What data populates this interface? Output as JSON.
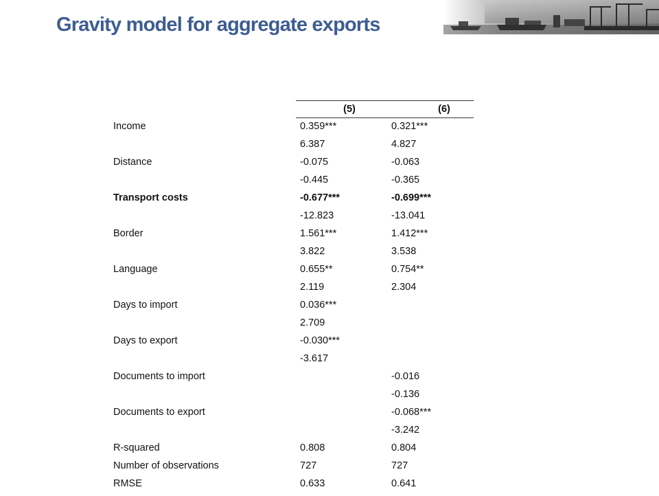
{
  "title": "Gravity model for aggregate exports",
  "table": {
    "col_headers": [
      "(5)",
      "(6)"
    ],
    "rows": [
      {
        "label": "Income",
        "c5": "0.359***",
        "c6": "0.321***",
        "bold": false
      },
      {
        "label": "",
        "c5": "6.387",
        "c6": "4.827",
        "bold": false
      },
      {
        "label": "Distance",
        "c5": "-0.075",
        "c6": "-0.063",
        "bold": false
      },
      {
        "label": "",
        "c5": "-0.445",
        "c6": "-0.365",
        "bold": false
      },
      {
        "label": "Transport costs",
        "c5": "-0.677***",
        "c6": "-0.699***",
        "bold": true
      },
      {
        "label": "",
        "c5": "-12.823",
        "c6": "-13.041",
        "bold": false
      },
      {
        "label": "Border",
        "c5": "1.561***",
        "c6": "1.412***",
        "bold": false
      },
      {
        "label": "",
        "c5": "3.822",
        "c6": "3.538",
        "bold": false
      },
      {
        "label": "Language",
        "c5": "0.655**",
        "c6": "0.754**",
        "bold": false
      },
      {
        "label": "",
        "c5": "2.119",
        "c6": "2.304",
        "bold": false
      },
      {
        "label": "Days to import",
        "c5": "0.036***",
        "c6": "",
        "bold": false
      },
      {
        "label": "",
        "c5": "2.709",
        "c6": "",
        "bold": false
      },
      {
        "label": "Days to export",
        "c5": "-0.030***",
        "c6": "",
        "bold": false
      },
      {
        "label": "",
        "c5": "-3.617",
        "c6": "",
        "bold": false
      },
      {
        "label": "Documents to import",
        "c5": "",
        "c6": "-0.016",
        "bold": false
      },
      {
        "label": "",
        "c5": "",
        "c6": "-0.136",
        "bold": false
      },
      {
        "label": "Documents to export",
        "c5": "",
        "c6": "-0.068***",
        "bold": false
      },
      {
        "label": "",
        "c5": "",
        "c6": "-3.242",
        "bold": false
      },
      {
        "label": "R-squared",
        "c5": "0.808",
        "c6": "0.804",
        "bold": false
      },
      {
        "label": "Number of observations",
        "c5": "727",
        "c6": "727",
        "bold": false
      },
      {
        "label": "RMSE",
        "c5": "0.633",
        "c6": "0.641",
        "bold": false
      }
    ]
  },
  "colors": {
    "title": "#3d5d91",
    "text": "#111111"
  },
  "banner_image": "port-harbor-photo-strip"
}
